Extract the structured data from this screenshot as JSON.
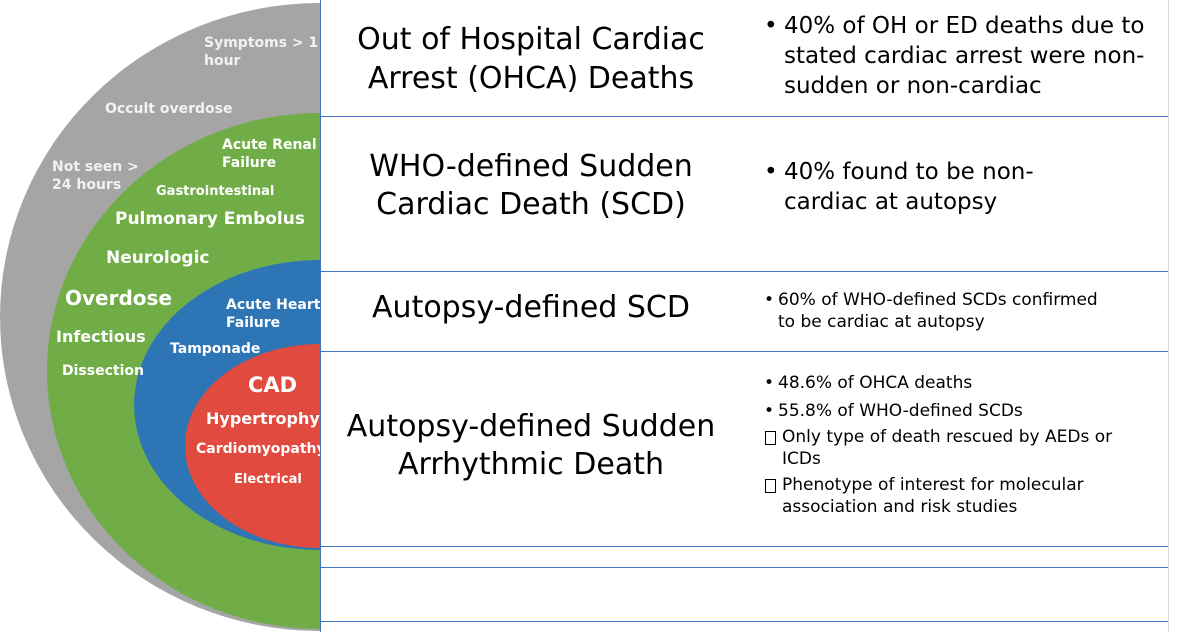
{
  "diagram": {
    "colors": {
      "gray": "#a5a5a5",
      "green": "#70ad47",
      "blue": "#2e75b6",
      "red": "#e04a3f",
      "line": "#4472c4"
    },
    "gray_ring": {
      "labels": [
        "Symptoms > 1 hour",
        "Occult overdose",
        "Not seen > 24 hours"
      ]
    },
    "green_ring": {
      "labels": [
        "Acute Renal Failure",
        "Gastrointestinal",
        "Pulmonary Embolus",
        "Neurologic",
        "Overdose",
        "Infectious",
        "Dissection"
      ]
    },
    "blue_ring": {
      "labels": [
        "Acute Heart Failure",
        "Tamponade"
      ]
    },
    "red_core": {
      "labels": [
        "CAD",
        "Hypertrophy",
        "Cardiomyopathy",
        "Electrical"
      ]
    }
  },
  "rows": [
    {
      "title_lines": [
        "Out of Hospital Cardiac",
        "Arrest (OHCA) Deaths"
      ],
      "bullets": [
        {
          "marker": "•",
          "lines": [
            "40% of OH or ED deaths due to",
            "stated cardiac arrest were non-",
            "sudden or non-cardiac"
          ]
        }
      ]
    },
    {
      "title_lines": [
        "WHO-defined Sudden",
        "Cardiac Death (SCD)"
      ],
      "bullets": [
        {
          "marker": "•",
          "lines": [
            "40% found to be non-",
            "cardiac at autopsy"
          ]
        }
      ]
    },
    {
      "title_lines": [
        "Autopsy-defined SCD"
      ],
      "bullets": [
        {
          "marker": "•",
          "lines": [
            "60% of WHO-defined SCDs confirmed",
            "to be cardiac at autopsy"
          ]
        }
      ]
    },
    {
      "title_lines": [
        "Autopsy-defined Sudden",
        "Arrhythmic Death"
      ],
      "bullets": [
        {
          "marker": "•",
          "lines": [
            "48.6% of OHCA deaths"
          ]
        },
        {
          "marker": "•",
          "lines": [
            "55.8% of WHO-defined SCDs"
          ]
        },
        {
          "marker": "box",
          "lines": [
            "Only type of death rescued by AEDs or",
            "ICDs"
          ]
        },
        {
          "marker": "box",
          "lines": [
            "Phenotype of interest for molecular",
            "association and risk studies"
          ]
        }
      ]
    }
  ]
}
